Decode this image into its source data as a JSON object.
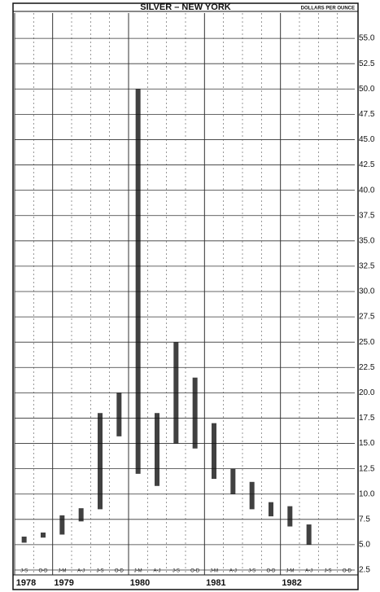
{
  "chart_data": {
    "type": "range",
    "title": "SILVER – NEW YORK",
    "subtitle": "DOLLARS PER OUNCE",
    "categories": [
      "J-S",
      "O-D",
      "J-M",
      "A-J",
      "J-S",
      "O-D",
      "J-M",
      "A-J",
      "J-S",
      "O-D",
      "J-M",
      "A-J",
      "J-S",
      "O-D",
      "J-M",
      "A-J",
      "J-S",
      "O-D"
    ],
    "years": [
      "1978",
      null,
      "1979",
      null,
      null,
      null,
      "1980",
      null,
      null,
      null,
      "1981",
      null,
      null,
      null,
      "1982",
      null,
      null,
      null
    ],
    "series": [
      {
        "name": "High",
        "color": "#111111",
        "values": [
          5.8,
          6.2,
          7.9,
          8.6,
          18.0,
          20.0,
          50.0,
          18.0,
          25.0,
          21.5,
          17.0,
          12.5,
          11.2,
          9.2,
          8.8,
          7.0,
          null,
          null
        ]
      },
      {
        "name": "Low",
        "color": "#111111",
        "values": [
          5.2,
          5.7,
          6.0,
          7.3,
          8.5,
          15.7,
          12.0,
          10.8,
          15.0,
          14.5,
          11.5,
          10.0,
          8.5,
          7.8,
          6.8,
          5.0,
          null,
          null
        ]
      }
    ],
    "ylim": [
      2.5,
      57.5
    ],
    "yticks": [
      {
        "value": 2.5,
        "label": "2.5"
      },
      {
        "value": 5,
        "label": "5.0"
      },
      {
        "value": 7.5,
        "label": "7.5"
      },
      {
        "value": 10,
        "label": "10.0"
      },
      {
        "value": 12.5,
        "label": "12.5"
      },
      {
        "value": 15,
        "label": "15.0"
      },
      {
        "value": 17.5,
        "label": "17.5"
      },
      {
        "value": 20,
        "label": "20.0"
      },
      {
        "value": 22.5,
        "label": "22.5"
      },
      {
        "value": 25,
        "label": "25.0"
      },
      {
        "value": 27.5,
        "label": "27.5"
      },
      {
        "value": 30,
        "label": "30.0"
      },
      {
        "value": 32.5,
        "label": "32.5"
      },
      {
        "value": 35,
        "label": "35.0"
      },
      {
        "value": 37.5,
        "label": "37.5"
      },
      {
        "value": 40,
        "label": "40.0"
      },
      {
        "value": 42.5,
        "label": "42.5"
      },
      {
        "value": 45,
        "label": "45.0"
      },
      {
        "value": 47.5,
        "label": "47.5"
      },
      {
        "value": 50,
        "label": "50.0"
      },
      {
        "value": 52.5,
        "label": "52.5"
      },
      {
        "value": 55,
        "label": "55.0"
      }
    ],
    "grid": true
  }
}
